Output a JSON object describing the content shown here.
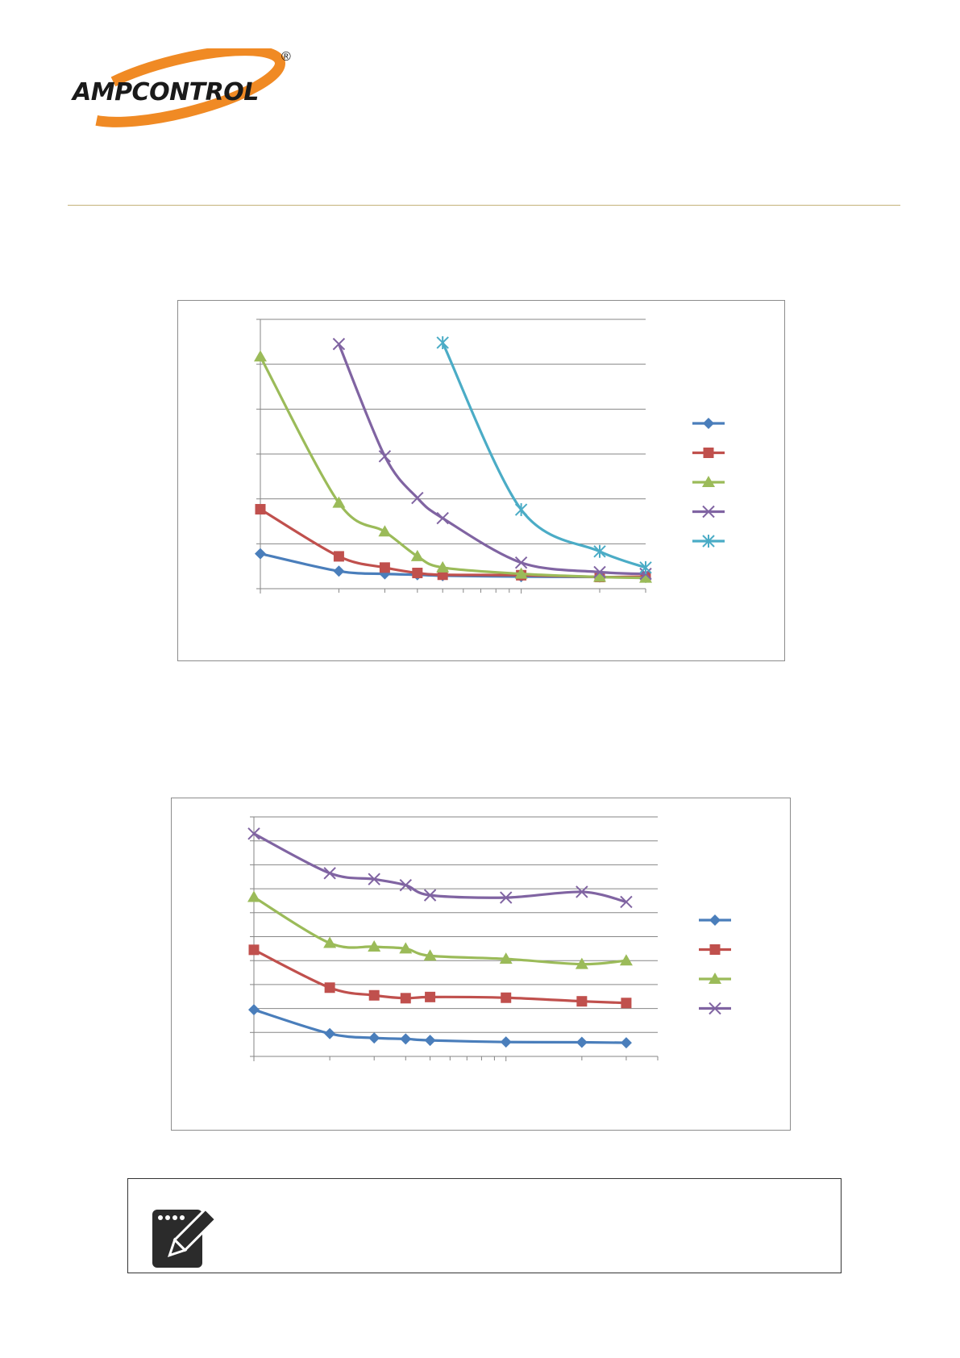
{
  "brand": {
    "name": "AMPCONTROL",
    "registered_mark": "®",
    "colors": {
      "orange": "#f08a24",
      "dark": "#1a1a1a",
      "rule": "#c4b27a"
    }
  },
  "note": {
    "icon": "notepad-pencil-icon"
  },
  "chart_data": [
    {
      "type": "line",
      "x_scale": "log",
      "ylim": [
        0,
        6
      ],
      "xlim": [
        1,
        30
      ],
      "grid": true,
      "legend_position": "right",
      "x": [
        1,
        2,
        3,
        4,
        5,
        10,
        20,
        30
      ],
      "series": [
        {
          "color": "#4a7ebb",
          "marker": "diamond",
          "points": [
            [
              1,
              0.78
            ],
            [
              2,
              0.39
            ],
            [
              3,
              0.33
            ],
            [
              4,
              0.31
            ],
            [
              5,
              0.29
            ],
            [
              10,
              0.27
            ],
            [
              20,
              0.26
            ],
            [
              30,
              0.25
            ]
          ]
        },
        {
          "color": "#c0504d",
          "marker": "square",
          "points": [
            [
              1,
              1.77
            ],
            [
              2,
              0.72
            ],
            [
              3,
              0.47
            ],
            [
              4,
              0.35
            ],
            [
              5,
              0.31
            ],
            [
              10,
              0.3
            ],
            [
              20,
              0.26
            ],
            [
              30,
              0.27
            ]
          ]
        },
        {
          "color": "#9bbb59",
          "marker": "triangle",
          "points": [
            [
              1,
              5.17
            ],
            [
              2,
              1.91
            ],
            [
              3,
              1.27
            ],
            [
              4,
              0.72
            ],
            [
              5,
              0.47
            ],
            [
              10,
              0.33
            ],
            [
              20,
              0.26
            ],
            [
              30,
              0.24
            ]
          ]
        },
        {
          "color": "#8064a2",
          "marker": "x",
          "points": [
            [
              2,
              5.45
            ],
            [
              3,
              2.95
            ],
            [
              4,
              2.02
            ],
            [
              5,
              1.57
            ],
            [
              10,
              0.58
            ],
            [
              20,
              0.37
            ],
            [
              30,
              0.33
            ]
          ]
        },
        {
          "color": "#4bacc6",
          "marker": "star",
          "points": [
            [
              5,
              5.48
            ],
            [
              10,
              1.76
            ],
            [
              20,
              0.83
            ],
            [
              30,
              0.47
            ]
          ]
        }
      ]
    },
    {
      "type": "line",
      "x_scale": "log",
      "ylim": [
        0,
        10
      ],
      "xlim": [
        1,
        40
      ],
      "grid": true,
      "legend_position": "right",
      "x": [
        1,
        2,
        3,
        4,
        5,
        10,
        20,
        30
      ],
      "series": [
        {
          "color": "#4a7ebb",
          "marker": "diamond",
          "points": [
            [
              1,
              1.95
            ],
            [
              2,
              0.95
            ],
            [
              3,
              0.77
            ],
            [
              4,
              0.73
            ],
            [
              5,
              0.67
            ],
            [
              10,
              0.6
            ],
            [
              20,
              0.59
            ],
            [
              30,
              0.57
            ]
          ]
        },
        {
          "color": "#c0504d",
          "marker": "square",
          "points": [
            [
              1,
              4.45
            ],
            [
              2,
              2.87
            ],
            [
              3,
              2.55
            ],
            [
              4,
              2.43
            ],
            [
              5,
              2.48
            ],
            [
              10,
              2.45
            ],
            [
              20,
              2.3
            ],
            [
              30,
              2.23
            ]
          ]
        },
        {
          "color": "#9bbb59",
          "marker": "triangle",
          "points": [
            [
              1,
              6.65
            ],
            [
              2,
              4.73
            ],
            [
              3,
              4.58
            ],
            [
              4,
              4.5
            ],
            [
              5,
              4.2
            ],
            [
              10,
              4.07
            ],
            [
              20,
              3.85
            ],
            [
              30,
              4.0
            ]
          ]
        },
        {
          "color": "#8064a2",
          "marker": "x",
          "points": [
            [
              1,
              9.3
            ],
            [
              2,
              7.65
            ],
            [
              3,
              7.4
            ],
            [
              4,
              7.15
            ],
            [
              5,
              6.73
            ],
            [
              10,
              6.63
            ],
            [
              20,
              6.87
            ],
            [
              30,
              6.45
            ]
          ]
        }
      ]
    }
  ]
}
